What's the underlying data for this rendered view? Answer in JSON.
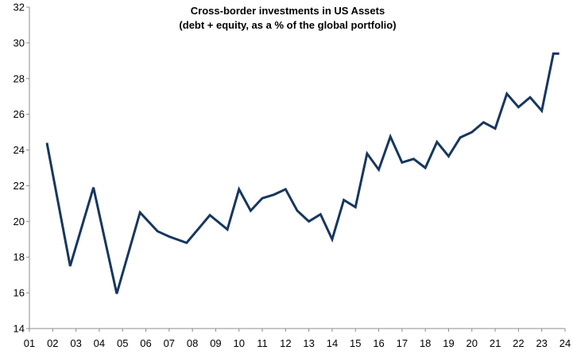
{
  "chart_data": {
    "type": "line",
    "title": "Cross-border investments in US Assets",
    "subtitle": "(debt + equity, as a % of the global portfolio)",
    "xlabel": "",
    "ylabel": "",
    "x_tick_labels": [
      "01",
      "02",
      "03",
      "04",
      "05",
      "06",
      "07",
      "08",
      "09",
      "10",
      "11",
      "12",
      "13",
      "14",
      "15",
      "16",
      "17",
      "18",
      "19",
      "20",
      "21",
      "22",
      "23",
      "24"
    ],
    "x_range": [
      2001,
      2024
    ],
    "ylim": [
      14,
      32
    ],
    "y_ticks": [
      14,
      16,
      18,
      20,
      22,
      24,
      26,
      28,
      30,
      32
    ],
    "grid": false,
    "legend": "none",
    "line_color": "#17375e",
    "series": [
      {
        "x": [
          2001.75,
          2002.75,
          2003.75,
          2004.75,
          2005.75,
          2006.5,
          2007.0,
          2007.75,
          2008.75,
          2009.5,
          2010.0,
          2010.5,
          2011.0,
          2011.5,
          2012.0,
          2012.5,
          2013.0,
          2013.5,
          2014.0,
          2014.5,
          2015.0,
          2015.5,
          2016.0,
          2016.5,
          2017.0,
          2017.5,
          2018.0,
          2018.5,
          2019.0,
          2019.5,
          2020.0,
          2020.5,
          2021.0,
          2021.5,
          2022.0,
          2022.5,
          2023.0,
          2023.5,
          2023.75
        ],
        "values": [
          24.4,
          17.5,
          21.9,
          15.95,
          20.5,
          19.45,
          19.15,
          18.8,
          20.35,
          19.55,
          21.8,
          20.6,
          21.3,
          21.5,
          21.8,
          20.6,
          20.0,
          20.4,
          19.0,
          21.2,
          20.8,
          23.8,
          22.9,
          24.75,
          23.3,
          23.5,
          23.0,
          24.45,
          23.65,
          24.7,
          25.0,
          25.55,
          25.2,
          27.15,
          26.4,
          26.95,
          26.2,
          29.4,
          29.4
        ]
      }
    ]
  }
}
